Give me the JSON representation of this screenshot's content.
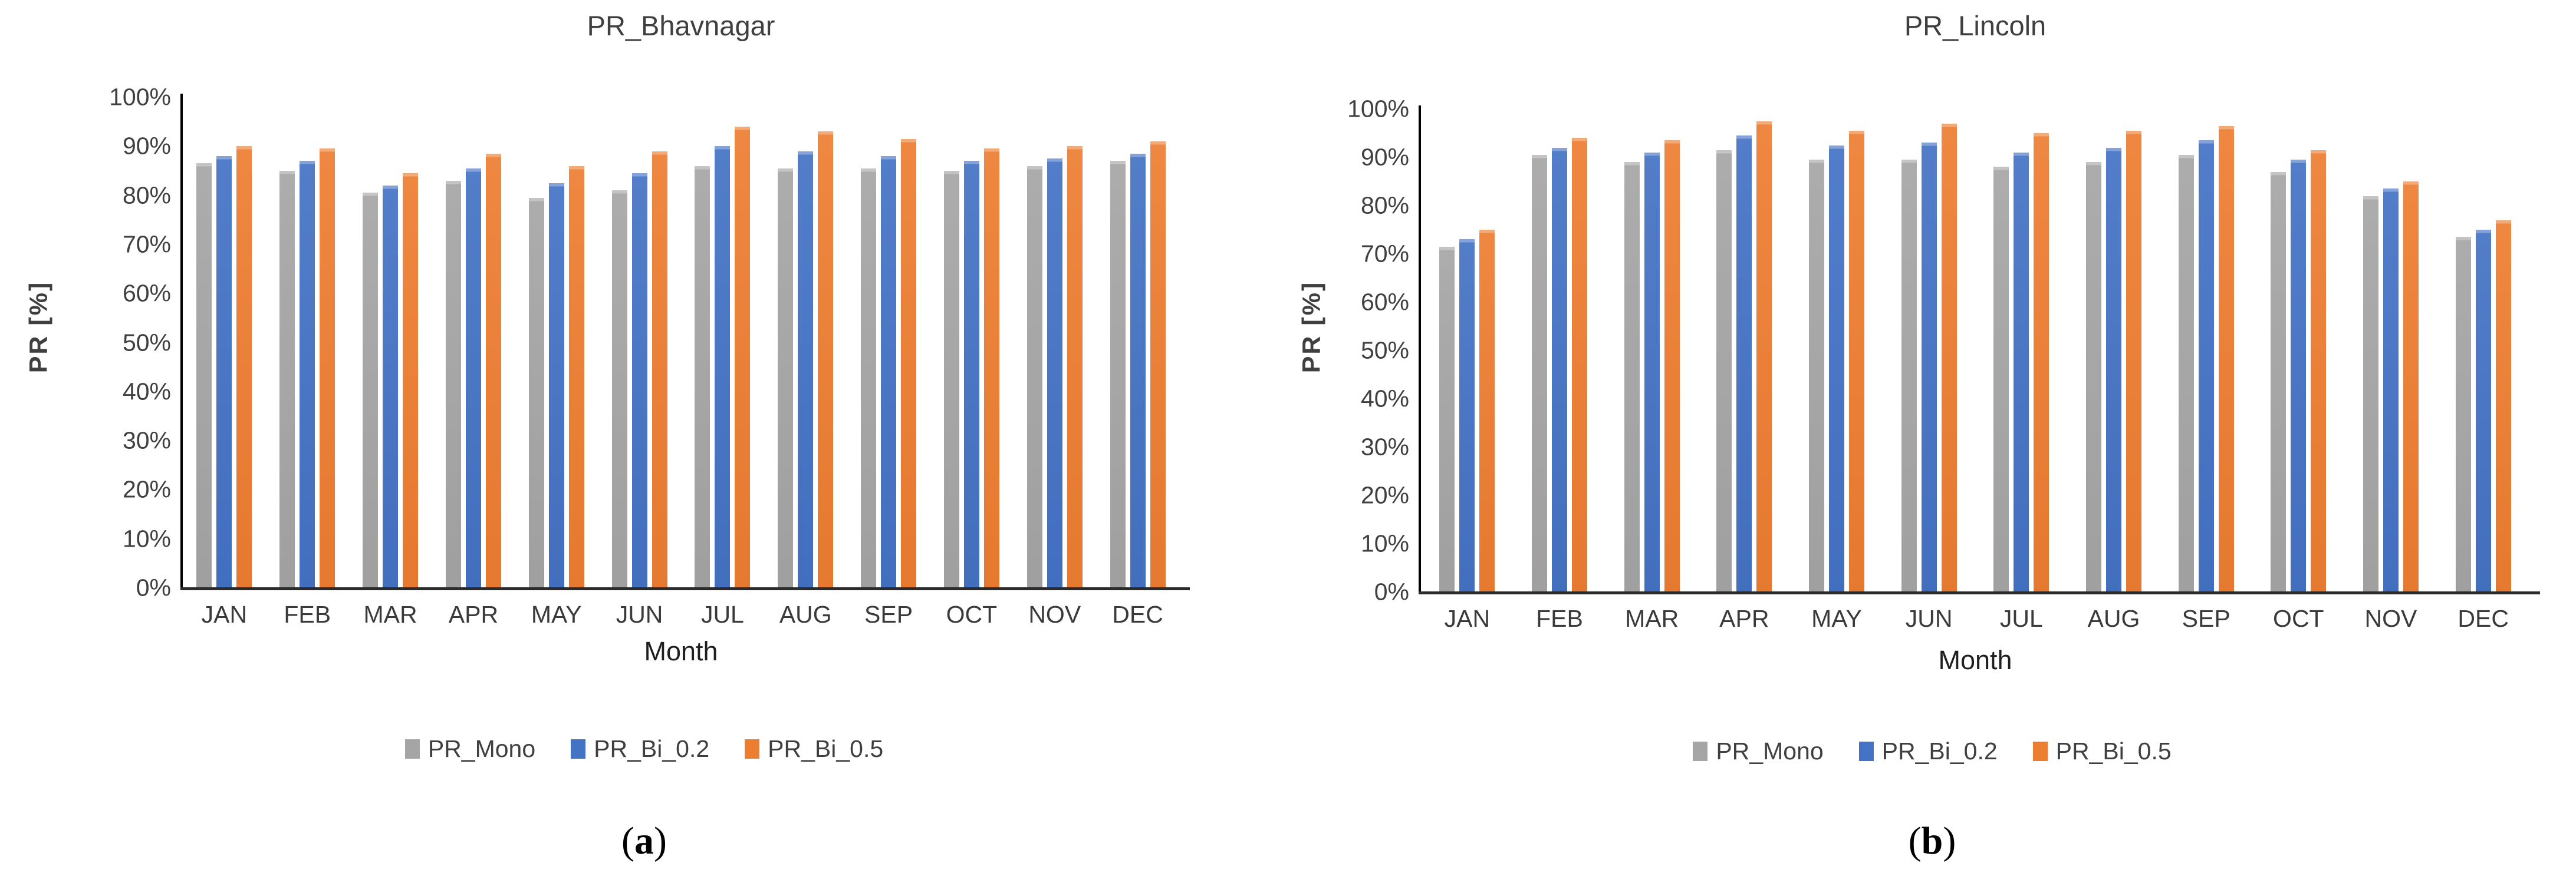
{
  "figures": [
    {
      "title": "PR_Bhavnagar",
      "y_axis_label": "PR [%]",
      "x_axis_label": "Month",
      "caption": {
        "open": "(",
        "letter": "a",
        "close": ")"
      }
    },
    {
      "title": "PR_Lincoln",
      "y_axis_label": "PR [%]",
      "x_axis_label": "Month",
      "caption": {
        "open": "(",
        "letter": "b",
        "close": ")"
      }
    }
  ],
  "colors": {
    "gray_series": "#A5A5A5",
    "blue_series": "#4472C4",
    "orange_series": "#ED7D31",
    "axis_line": "#000000",
    "text": "#3f3f3f"
  },
  "chart_data": [
    {
      "type": "bar",
      "title": "PR_Bhavnagar",
      "xlabel": "Month",
      "ylabel": "PR [%]",
      "ylim": [
        0,
        100
      ],
      "grid": false,
      "legend_position": "bottom",
      "y_ticks": [
        "0%",
        "10%",
        "20%",
        "30%",
        "40%",
        "50%",
        "60%",
        "70%",
        "80%",
        "90%",
        "100%"
      ],
      "categories": [
        "JAN",
        "FEB",
        "MAR",
        "APR",
        "MAY",
        "JUN",
        "JUL",
        "AUG",
        "SEP",
        "OCT",
        "NOV",
        "DEC"
      ],
      "series": [
        {
          "name": "PR_Mono",
          "color": "#A5A5A5",
          "values": [
            86.5,
            85.0,
            80.5,
            83.0,
            79.5,
            81.0,
            86.0,
            85.5,
            85.5,
            85.0,
            86.0,
            87.0
          ]
        },
        {
          "name": "PR_Bi_0.2",
          "color": "#4472C4",
          "values": [
            88.0,
            87.0,
            82.0,
            85.5,
            82.5,
            84.5,
            90.0,
            89.0,
            88.0,
            87.0,
            87.5,
            88.5
          ]
        },
        {
          "name": "PR_Bi_0.5",
          "color": "#ED7D31",
          "values": [
            90.0,
            89.5,
            84.5,
            88.5,
            86.0,
            89.0,
            94.0,
            93.0,
            91.5,
            89.5,
            90.0,
            91.0
          ]
        }
      ]
    },
    {
      "type": "bar",
      "title": "PR_Lincoln",
      "xlabel": "Month",
      "ylabel": "PR [%]",
      "ylim": [
        0,
        100
      ],
      "grid": false,
      "legend_position": "bottom",
      "y_ticks": [
        "0%",
        "10%",
        "20%",
        "30%",
        "40%",
        "50%",
        "60%",
        "70%",
        "80%",
        "90%",
        "100%"
      ],
      "categories": [
        "JAN",
        "FEB",
        "MAR",
        "APR",
        "MAY",
        "JUN",
        "JUL",
        "AUG",
        "SEP",
        "OCT",
        "NOV",
        "DEC"
      ],
      "series": [
        {
          "name": "PR_Mono",
          "color": "#A5A5A5",
          "values": [
            71.5,
            90.5,
            89.0,
            91.5,
            89.5,
            89.5,
            88.0,
            89.0,
            90.5,
            87.0,
            82.0,
            73.5
          ]
        },
        {
          "name": "PR_Bi_0.2",
          "color": "#4472C4",
          "values": [
            73.0,
            92.0,
            91.0,
            94.5,
            92.5,
            93.0,
            91.0,
            92.0,
            93.5,
            89.5,
            83.5,
            75.0
          ]
        },
        {
          "name": "PR_Bi_0.5",
          "color": "#ED7D31",
          "values": [
            75.0,
            94.0,
            93.5,
            97.5,
            95.5,
            97.0,
            95.0,
            95.5,
            96.5,
            91.5,
            85.0,
            77.0
          ]
        }
      ]
    }
  ]
}
